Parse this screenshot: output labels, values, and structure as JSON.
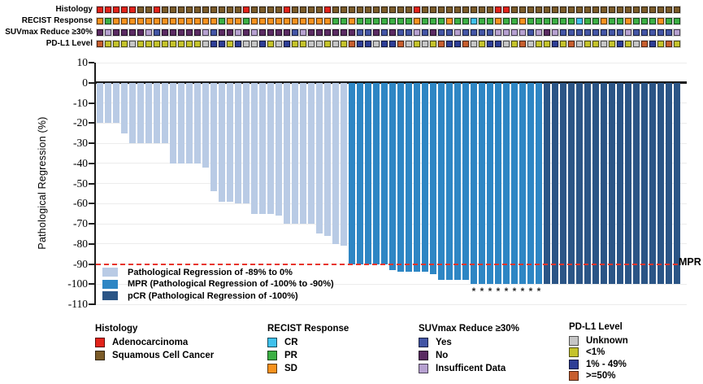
{
  "tracks": {
    "labels": [
      "Histology",
      "RECIST Response",
      "SUVmax Reduce ≥30%",
      "PD-L1 Level"
    ],
    "columns": {
      "histology": "AAAAASSASSSSSSSSSSASSSSASSSSASSSSSSSSSSASSSSSSSSSAASSSSSSSSSSSSSSSSSSSSS",
      "recist": "SPSSSSSSSSSSSSSPSSPSSSSSSSSSSPPSPPPPPPPSPPPSPPCPPSPPSPPPPPPCPPSPPSPPPSPP",
      "suvmax": "NINNNNIYNNNNNIYNNININNNNYINNNNNNYYNYNYYIYNYYIYYYYIIIIYINIYYYYYYYYIYYYYYI",
      "pdl1": "HLLLULLLLLLLLUMMLMUUMLUMLLUULULHMMUMMHULULHMMHULMMULHULLMLHULLULMLUHMLHL"
    },
    "palettes": {
      "histology": {
        "A": "#E2231A",
        "S": "#7B5B28"
      },
      "recist": {
        "C": "#3FC1EC",
        "P": "#3CB044",
        "S": "#F6921E"
      },
      "suvmax": {
        "Y": "#4355A5",
        "N": "#5A2A62",
        "I": "#B6A0D0"
      },
      "pdl1": {
        "U": "#C6C6C6",
        "L": "#C5C32B",
        "M": "#2E3E96",
        "H": "#C75E2E"
      }
    }
  },
  "chart_data": {
    "type": "bar",
    "title": "",
    "xlabel": "",
    "ylabel": "Pathological Regression (%)",
    "ylim": [
      -110,
      10
    ],
    "yticks": [
      10,
      0,
      -10,
      -20,
      -30,
      -40,
      -50,
      -60,
      -70,
      -80,
      -90,
      -100,
      -110
    ],
    "n_patients": 72,
    "values": [
      -20,
      -20,
      -20,
      -25,
      -30,
      -30,
      -30,
      -30,
      -30,
      -40,
      -40,
      -40,
      -40,
      -42,
      -54,
      -59,
      -59,
      -60,
      -60,
      -65,
      -65,
      -65,
      -66,
      -70,
      -70,
      -70,
      -70,
      -75,
      -76,
      -80,
      -81,
      -90,
      -90,
      -90,
      -90,
      -90,
      -93,
      -94,
      -94,
      -94,
      -94,
      -95,
      -98,
      -98,
      -98,
      -98,
      -100,
      -100,
      -100,
      -100,
      -100,
      -100,
      -100,
      -100,
      -100,
      -100,
      -100,
      -100,
      -100,
      -100,
      -100,
      -100,
      -100,
      -100,
      -100,
      -100,
      -100,
      -100,
      -100,
      -100,
      -100,
      -100
    ],
    "groups": {
      "pr_count": 31,
      "mpr_count": 24,
      "pcr_count": 17
    },
    "group_colors": {
      "pr": "#B9CBE5",
      "mpr": "#2E86C4",
      "pcr": "#2B5586"
    },
    "grid": true,
    "mpr_line": {
      "value": -90,
      "label": "MPR",
      "color": "#E8352B"
    },
    "asterisk_columns": [
      47,
      48,
      49,
      50,
      51,
      52,
      53,
      54,
      55
    ],
    "asterisk_glyph": "*",
    "legend": [
      {
        "label": "Pathological Regression of -89% to 0%",
        "color": "#B9CBE5"
      },
      {
        "label": "MPR (Pathological Regression of -100% to -90%)",
        "color": "#2E86C4"
      },
      {
        "label": "pCR (Pathological Regression of -100%)",
        "color": "#2B5586"
      }
    ]
  },
  "legend_groups": [
    {
      "title": "Histology",
      "items": [
        {
          "label": "Adenocarcinoma",
          "color": "#E2231A"
        },
        {
          "label": "Squamous Cell Cancer",
          "color": "#7B5B28"
        }
      ]
    },
    {
      "title": "RECIST Response",
      "items": [
        {
          "label": "CR",
          "color": "#3FC1EC"
        },
        {
          "label": "PR",
          "color": "#3CB044"
        },
        {
          "label": "SD",
          "color": "#F6921E"
        }
      ]
    },
    {
      "title": "SUVmax Reduce ≥30%",
      "items": [
        {
          "label": "Yes",
          "color": "#4355A5"
        },
        {
          "label": "No",
          "color": "#5A2A62"
        },
        {
          "label": "Insufficent Data",
          "color": "#B6A0D0"
        }
      ]
    },
    {
      "title": "PD-L1 Level",
      "items": [
        {
          "label": "Unknown",
          "color": "#C6C6C6"
        },
        {
          "label": "<1%",
          "color": "#C5C32B"
        },
        {
          "label": "1% - 49%",
          "color": "#2E3E96"
        },
        {
          "label": ">=50%",
          "color": "#C75E2E"
        }
      ]
    }
  ]
}
